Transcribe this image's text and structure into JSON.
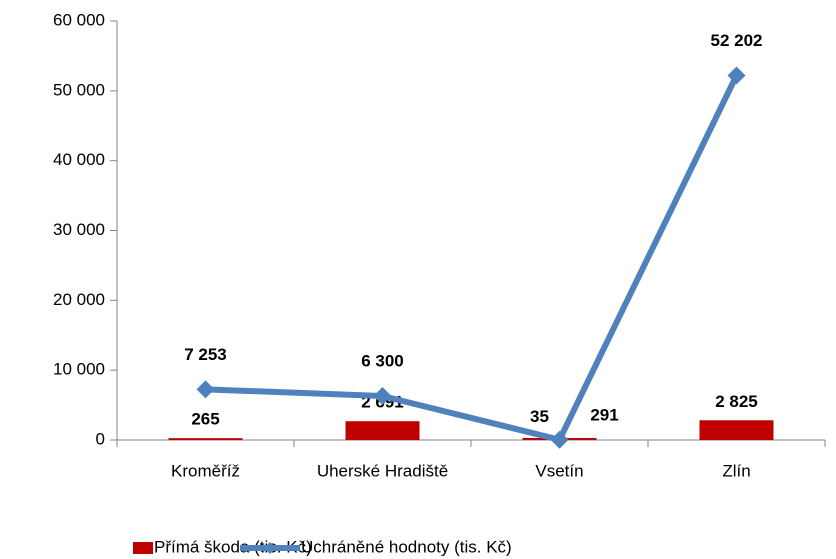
{
  "chart_data": {
    "type": "combo",
    "categories": [
      "Kroměříž",
      "Uherské Hradiště",
      "Vsetín",
      "Zlín"
    ],
    "series": [
      {
        "name": "Přímá škoda (tis. Kč)",
        "type": "bar",
        "color": "#c00000",
        "values": [
          265,
          2691,
          291,
          2825
        ],
        "value_labels": [
          "265",
          "2 691",
          "291",
          "2 825"
        ]
      },
      {
        "name": "Uchráněné hodnoty (tis. Kč)",
        "type": "line",
        "color": "#4f81bd",
        "values": [
          7253,
          6300,
          35,
          52202
        ],
        "value_labels": [
          "7 253",
          "6 300",
          "35",
          "52 202"
        ]
      }
    ],
    "ylim": [
      0,
      60000
    ],
    "yticks": [
      0,
      {
        "value": 10000,
        "label": "10 000"
      },
      {
        "value": 20000,
        "label": "20 000"
      },
      {
        "value": 30000,
        "label": "30 000"
      },
      {
        "value": 40000,
        "label": "40 000"
      },
      {
        "value": 50000,
        "label": "50 000"
      },
      {
        "value": 60000,
        "label": "60 000"
      }
    ],
    "legend": "bottom"
  }
}
